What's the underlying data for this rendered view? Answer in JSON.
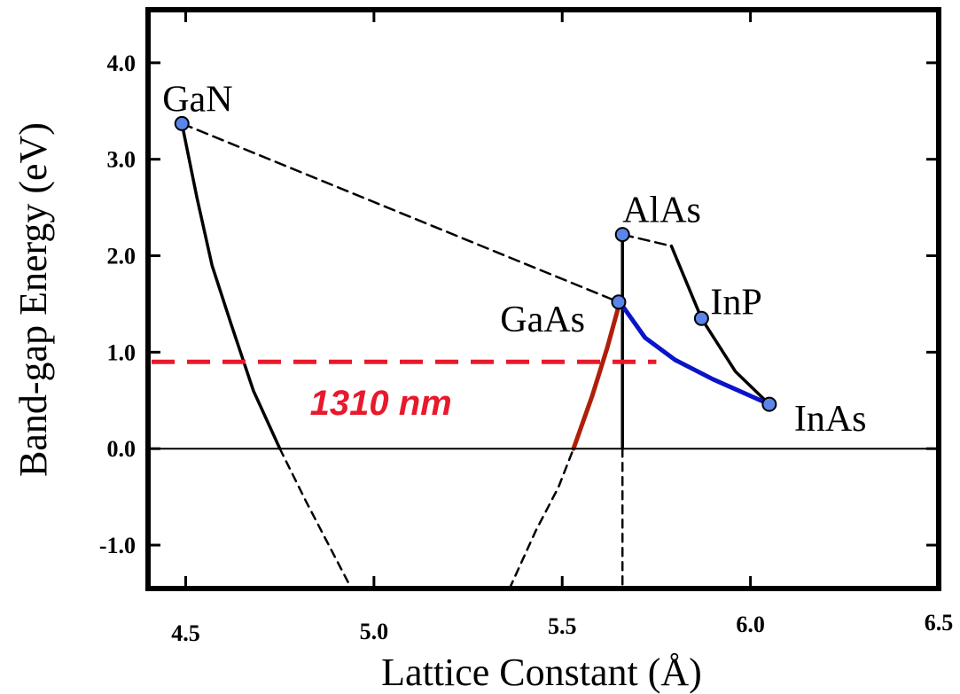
{
  "chart_data": {
    "type": "line",
    "xlabel": "Lattice Constant (Å)",
    "ylabel": "Band-gap Energy (eV)",
    "xlim": [
      4.4,
      6.5
    ],
    "ylim": [
      -1.45,
      4.55
    ],
    "xticks": [
      4.5,
      5.0,
      5.5,
      6.0,
      6.5
    ],
    "xtick_labels": [
      "4.5",
      "5.0",
      "5.5",
      "6.0",
      "6.5"
    ],
    "yticks": [
      -1.0,
      0.0,
      1.0,
      2.0,
      3.0,
      4.0
    ],
    "ytick_labels": [
      "-1.0",
      "0.0",
      "1.0",
      "2.0",
      "3.0",
      "4.0"
    ],
    "points": [
      {
        "label": "GaN",
        "x": 4.49,
        "y": 3.37
      },
      {
        "label": "AlAs",
        "x": 5.66,
        "y": 2.22
      },
      {
        "label": "GaAs",
        "x": 5.65,
        "y": 1.52
      },
      {
        "label": "InP",
        "x": 5.87,
        "y": 1.35
      },
      {
        "label": "InAs",
        "x": 6.05,
        "y": 0.46
      }
    ],
    "curves": [
      {
        "id": "GaN-GaAs",
        "style": "dashed",
        "color": "#000000",
        "x": [
          4.49,
          5.65
        ],
        "y": [
          3.37,
          1.52
        ]
      },
      {
        "id": "GaN-branch",
        "style": "solid",
        "color": "#000000",
        "x": [
          4.49,
          4.53,
          4.57,
          4.62,
          4.68,
          4.75
        ],
        "y": [
          3.37,
          2.6,
          1.9,
          1.3,
          0.6,
          0.0
        ]
      },
      {
        "id": "GaN-branch-negative",
        "style": "dashed",
        "color": "#000000",
        "x": [
          4.75,
          4.82,
          4.88,
          4.94
        ],
        "y": [
          0.0,
          -0.55,
          -1.0,
          -1.45
        ]
      },
      {
        "id": "AlAs-GaAs-vertical",
        "style": "solid",
        "color": "#000000",
        "x": [
          5.66,
          5.66
        ],
        "y": [
          2.22,
          0.0
        ]
      },
      {
        "id": "lattice-vertical-negative",
        "style": "dashed",
        "color": "#000000",
        "x": [
          5.66,
          5.66
        ],
        "y": [
          0.0,
          -1.45
        ]
      },
      {
        "id": "AlAs-InP",
        "style": "dashed",
        "color": "#000000",
        "x": [
          5.66,
          5.79
        ],
        "y": [
          2.22,
          2.1
        ]
      },
      {
        "id": "InP-curve",
        "style": "solid",
        "color": "#000000",
        "x": [
          5.79,
          5.87,
          5.96,
          6.05
        ],
        "y": [
          2.1,
          1.35,
          0.8,
          0.46
        ]
      },
      {
        "id": "GaAs-InAs",
        "style": "solid",
        "color": "#0a14c8",
        "x": [
          5.66,
          5.72,
          5.8,
          5.9,
          6.05
        ],
        "y": [
          1.48,
          1.15,
          0.92,
          0.72,
          0.46
        ]
      },
      {
        "id": "GaAs-branch",
        "style": "solid",
        "color": "#b01e0a",
        "x": [
          5.53,
          5.58,
          5.62,
          5.65
        ],
        "y": [
          0.0,
          0.55,
          1.05,
          1.48
        ]
      },
      {
        "id": "GaAs-branch-negative",
        "style": "dashed",
        "color": "#000000",
        "x": [
          5.36,
          5.43,
          5.49,
          5.53
        ],
        "y": [
          -1.45,
          -0.85,
          -0.4,
          0.0
        ]
      }
    ],
    "reference_line": {
      "y": 0.9,
      "x_range": [
        4.4,
        5.75
      ],
      "style": "dashed",
      "color": "#e8192c"
    },
    "annotation": {
      "text": "1310 nm",
      "color": "#e8192c"
    },
    "grid": false
  }
}
